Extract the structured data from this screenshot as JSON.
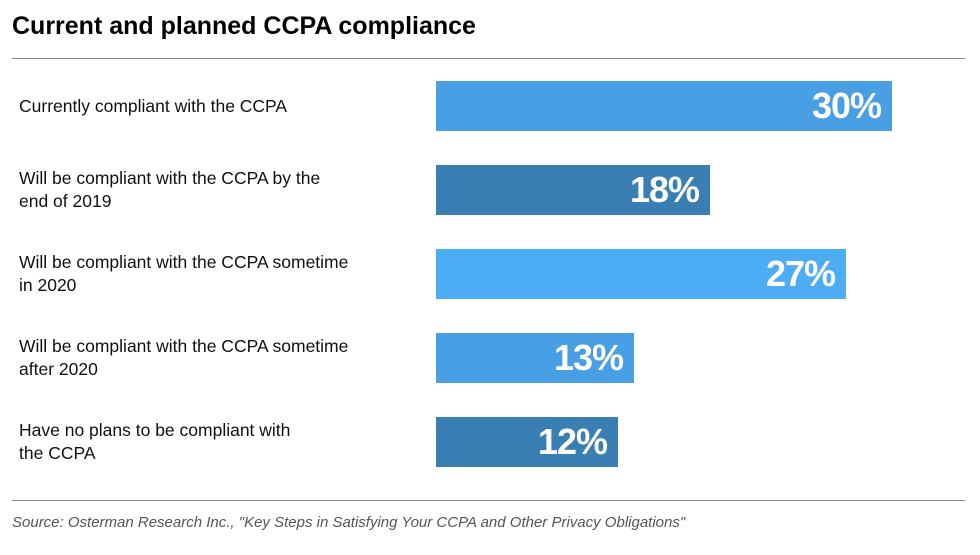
{
  "header": {
    "title": "Current and planned CCPA compliance"
  },
  "footer": {
    "source": "Source: Osterman Research Inc., \"Key Steps in Satisfying Your CCPA and Other Privacy Obligations\""
  },
  "chart_data": {
    "type": "bar",
    "orientation": "horizontal",
    "title": "Current and planned CCPA compliance",
    "categories": [
      "Currently compliant with the CCPA",
      "Will be compliant with the CCPA by the end of 2019",
      "Will be compliant with the CCPA sometime in 2020",
      "Will be compliant with the CCPA sometime after 2020",
      "Have no plans to be compliant with the CCPA"
    ],
    "label_lines": [
      [
        "Currently compliant with the CCPA"
      ],
      [
        "Will be compliant with the CCPA by the",
        "end of 2019"
      ],
      [
        "Will be compliant with the CCPA sometime",
        "in 2020"
      ],
      [
        "Will be compliant with the CCPA sometime",
        "after 2020"
      ],
      [
        "Have no plans to be compliant with",
        "the CCPA"
      ]
    ],
    "values": [
      30,
      18,
      27,
      13,
      12
    ],
    "value_labels": [
      "30%",
      "18%",
      "27%",
      "13%",
      "12%"
    ],
    "bar_colors": [
      "#489fe3",
      "#3a7fb3",
      "#4cacf4",
      "#489fe3",
      "#3a7fb3"
    ],
    "xlim": [
      0,
      30
    ],
    "grid": false,
    "legend": "none"
  }
}
